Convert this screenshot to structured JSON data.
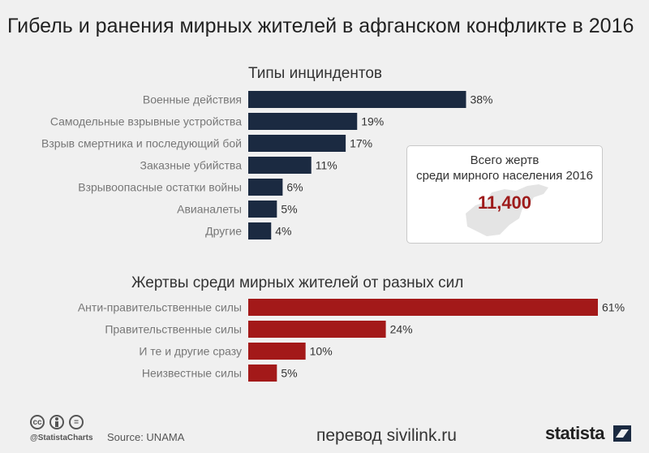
{
  "title": "Гибель и ранения мирных жителей в афганском конфликте в 2016",
  "chart_data": [
    {
      "type": "bar",
      "orientation": "horizontal",
      "title": "Типы инциндентов",
      "categories": [
        "Военные действия",
        "Самодельные взрывные устройства",
        "Взрыв смертника и последующий бой",
        "Заказные убийства",
        "Взрывоопасные остатки войны",
        "Авианалеты",
        "Другие"
      ],
      "values": [
        38,
        19,
        17,
        11,
        6,
        5,
        4
      ],
      "value_labels": [
        "38%",
        "19%",
        "17%",
        "11%",
        "6%",
        "5%",
        "4%"
      ],
      "unit": "%",
      "color": "#1b2a41",
      "xlim": [
        0,
        61
      ]
    },
    {
      "type": "bar",
      "orientation": "horizontal",
      "title": "Жертвы среди мирных жителей от разных сил",
      "categories": [
        "Анти-правительственные силы",
        "Правительственные силы",
        "И те и другие сразу",
        "Неизвестные силы"
      ],
      "values": [
        61,
        24,
        10,
        5
      ],
      "value_labels": [
        "61%",
        "24%",
        "10%",
        "5%"
      ],
      "unit": "%",
      "color": "#a31919",
      "xlim": [
        0,
        61
      ]
    }
  ],
  "callout": {
    "label_line1": "Всего жертв",
    "label_line2": "среди мирного населения 2016",
    "value": "11,400",
    "icon": "afghanistan-map-icon"
  },
  "footer": {
    "license_icons": [
      "cc",
      "by",
      "nd"
    ],
    "handle": "@StatistaCharts",
    "source": "Source: UNAMA",
    "translation": "перевод sivilink.ru",
    "brand": "statista"
  }
}
